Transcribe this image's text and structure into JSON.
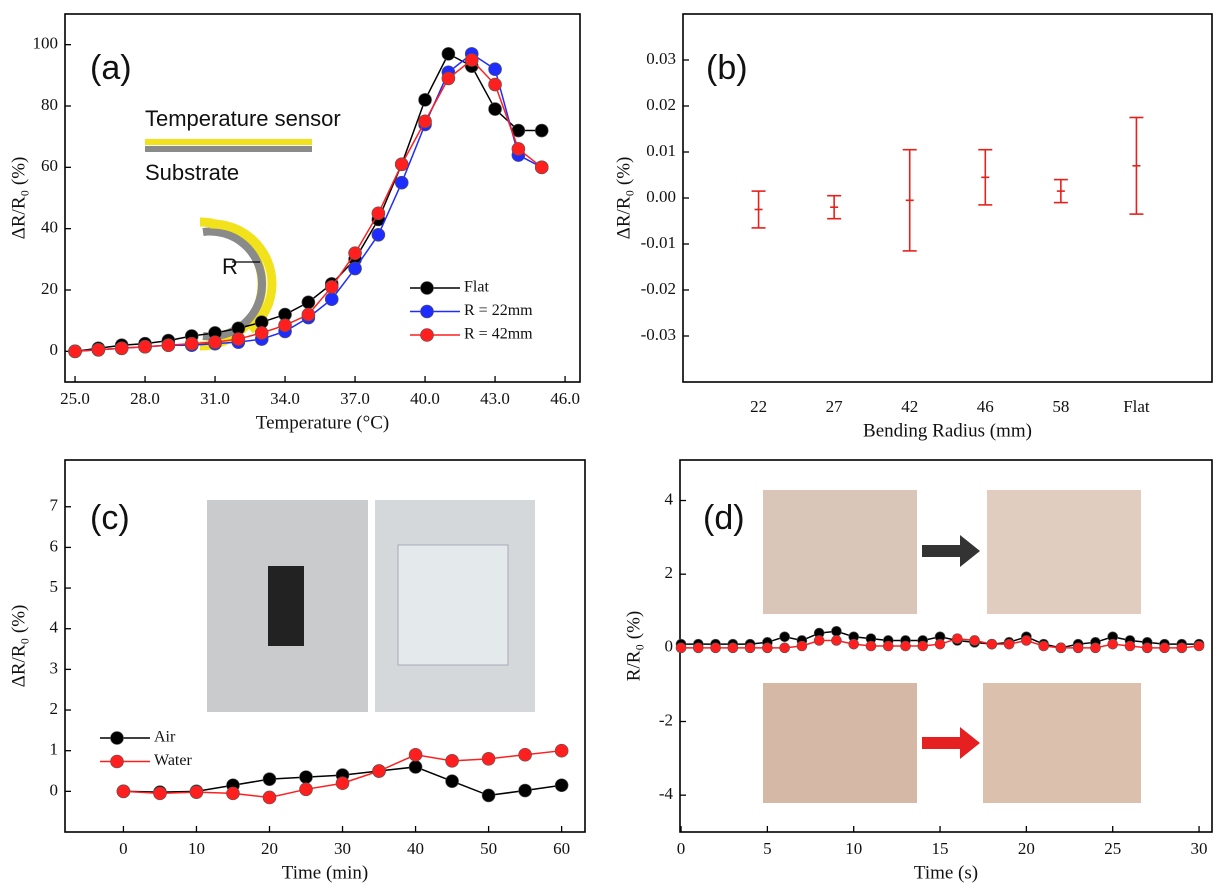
{
  "chart_data": [
    {
      "type": "line",
      "x_label": "Temperature (°C)",
      "y_label": "ΔR/R₀ (%)",
      "x": [
        25,
        26,
        27,
        28,
        29,
        30,
        31,
        32,
        33,
        34,
        35,
        36,
        37,
        38,
        39,
        40,
        41,
        42,
        43,
        44,
        45
      ],
      "xlim": [
        24.57,
        46.64
      ],
      "xticks": [
        {
          "value": 25,
          "label": "25.0"
        },
        {
          "value": 28,
          "label": "28.0"
        },
        {
          "value": 31,
          "label": "31.0"
        },
        {
          "value": 34,
          "label": "34.0"
        },
        {
          "value": 37,
          "label": "37.0"
        },
        {
          "value": 40,
          "label": "40.0"
        },
        {
          "value": 43,
          "label": "43.0"
        },
        {
          "value": 46,
          "label": "46.0"
        }
      ],
      "ylim": [
        -10,
        110
      ],
      "yticks": [
        0,
        20,
        40,
        60,
        80,
        100
      ],
      "legend": "lower right",
      "series": [
        {
          "name": "Flat",
          "color": "#000000",
          "values": [
            0,
            1,
            2,
            2.5,
            3.5,
            5,
            6,
            7.5,
            9.5,
            12,
            16,
            22,
            30,
            43,
            61,
            82,
            97,
            93,
            79,
            72,
            72
          ]
        },
        {
          "name": "R = 22mm",
          "color": "#1f2cff",
          "values": [
            0,
            0.5,
            1,
            1.5,
            2,
            2,
            2.5,
            3,
            4,
            6.5,
            11,
            17,
            27,
            38,
            55,
            74,
            91,
            97,
            92,
            64,
            60
          ]
        },
        {
          "name": "R = 42mm",
          "color": "#ff1f1f",
          "values": [
            0,
            0.5,
            1,
            1.5,
            2,
            2.5,
            3,
            4,
            6,
            8.5,
            12,
            21,
            32,
            45,
            61,
            75,
            89,
            95,
            87,
            66,
            60
          ]
        }
      ],
      "annotations": [
        "(a)",
        "Temperature sensor",
        "Substrate",
        "R"
      ]
    },
    {
      "type": "errorbar",
      "x_label": "Bending Radius (mm)",
      "y_label": "ΔR/R₀ (%)",
      "categories": [
        "22",
        "27",
        "42",
        "46",
        "58",
        "Flat"
      ],
      "values": [
        -0.0025,
        -0.002,
        -0.0005,
        0.0045,
        0.0015,
        0.007
      ],
      "errors": [
        0.004,
        0.0025,
        0.011,
        0.006,
        0.0025,
        0.0105
      ],
      "color": "#e8201c",
      "ylim": [
        -0.04,
        0.04
      ],
      "yticks": [
        -0.03,
        -0.02,
        -0.01,
        {
          "value": 0,
          "label": "0.00"
        },
        0.01,
        0.02,
        0.03
      ],
      "annotations": [
        "(b)"
      ]
    },
    {
      "type": "line",
      "x_label": "Time (min)",
      "y_label": "ΔR/R₀ (%)",
      "x": [
        0,
        5,
        10,
        15,
        20,
        25,
        30,
        35,
        40,
        45,
        50,
        55,
        60
      ],
      "xlim": [
        -8,
        63.2
      ],
      "xticks": [
        0,
        10,
        20,
        30,
        40,
        50,
        60
      ],
      "ylim": [
        -1,
        8.15
      ],
      "yticks": [
        0,
        1,
        2,
        3,
        4,
        5,
        6,
        7
      ],
      "legend": "lower left",
      "series": [
        {
          "name": "Air",
          "color": "#000000",
          "values": [
            0,
            -0.02,
            0,
            0.15,
            0.3,
            0.35,
            0.4,
            0.5,
            0.6,
            0.25,
            -0.1,
            0.02,
            0.15
          ]
        },
        {
          "name": "Water",
          "color": "#ff1f1f",
          "values": [
            0,
            -0.05,
            -0.02,
            -0.05,
            -0.15,
            0.05,
            0.2,
            0.5,
            0.9,
            0.75,
            0.8,
            0.9,
            1.0
          ]
        }
      ],
      "annotations": [
        "(c)"
      ]
    },
    {
      "type": "line",
      "x_label": "Time (s)",
      "y_label": "R/R₀ (%)",
      "x": [
        0,
        1,
        2,
        3,
        4,
        5,
        6,
        7,
        8,
        9,
        10,
        11,
        12,
        13,
        14,
        15,
        16,
        17,
        18,
        19,
        20,
        21,
        22,
        23,
        24,
        25,
        26,
        27,
        28,
        29,
        30
      ],
      "xlim": [
        -0.06,
        30.75
      ],
      "xticks": [
        0,
        5,
        10,
        15,
        20,
        25,
        30
      ],
      "ylim": [
        -5,
        5.1
      ],
      "yticks": [
        -4,
        -2,
        0,
        2,
        4
      ],
      "series": [
        {
          "color": "#000000",
          "values": [
            0.1,
            0.1,
            0.1,
            0.1,
            0.1,
            0.15,
            0.3,
            0.2,
            0.4,
            0.45,
            0.3,
            0.25,
            0.2,
            0.2,
            0.2,
            0.3,
            0.2,
            0.15,
            0.1,
            0.15,
            0.3,
            0.1,
            0.0,
            0.1,
            0.15,
            0.3,
            0.2,
            0.15,
            0.1,
            0.1,
            0.1
          ]
        },
        {
          "color": "#ff1f1f",
          "values": [
            0,
            0,
            0,
            0,
            0,
            0,
            0,
            0.05,
            0.2,
            0.2,
            0.1,
            0.05,
            0.05,
            0.05,
            0.05,
            0.1,
            0.25,
            0.2,
            0.1,
            0.1,
            0.2,
            0.05,
            0,
            0,
            0,
            0.1,
            0.05,
            0,
            0,
            0,
            0.05
          ]
        }
      ],
      "annotations": [
        "(d)"
      ]
    }
  ]
}
